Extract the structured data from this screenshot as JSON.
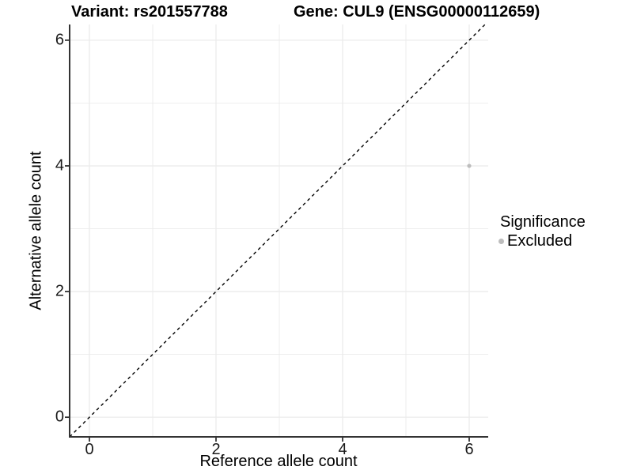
{
  "figure": {
    "background": "#ffffff"
  },
  "chart_data": {
    "type": "scatter",
    "title_left": "Variant: rs201557788",
    "title_right": "Gene: CUL9 (ENSG00000112659)",
    "title": "Variant: rs201557788    Gene: CUL9 (ENSG00000112659)",
    "xlabel": "Reference allele count",
    "ylabel": "Alternative allele count",
    "xlim": [
      -0.3125,
      6.3
    ],
    "ylim": [
      -0.3125,
      6.25
    ],
    "x_ticks": [
      0,
      2,
      4,
      6
    ],
    "y_ticks": [
      0,
      2,
      4,
      6
    ],
    "x_minor_ticks": [
      1,
      3,
      5
    ],
    "y_minor_ticks": [
      1,
      3,
      5
    ],
    "grid": true,
    "legend_position": "right",
    "points": [
      {
        "x": 6,
        "y": 4,
        "significance": "Excluded"
      }
    ],
    "identity_line": {
      "style": "dashed",
      "from": [
        -0.3125,
        -0.3125
      ],
      "to": [
        6.25,
        6.25
      ]
    },
    "legend": {
      "title": "Significance",
      "items": [
        {
          "label": "Excluded",
          "color": "#bdbdbd"
        }
      ]
    },
    "colors": {
      "grid": "#ebebeb",
      "axis": "#333333",
      "point": "#bdbdbd",
      "tick_label": "#1a1a1a",
      "title": "#000000",
      "dashed_line": "#000000"
    }
  }
}
